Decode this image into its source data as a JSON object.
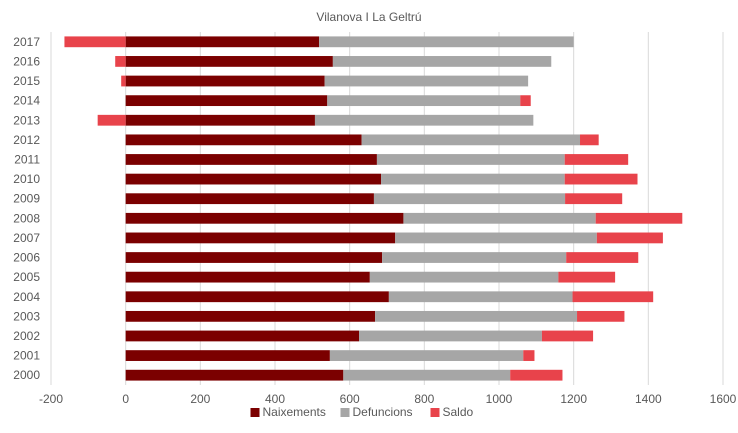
{
  "chart_data": {
    "type": "bar",
    "orientation": "horizontal",
    "stacked": true,
    "title": "Vilanova  I La Geltrú",
    "categories": [
      "2017",
      "2016",
      "2015",
      "2014",
      "2013",
      "2012",
      "2011",
      "2010",
      "2009",
      "2008",
      "2007",
      "2006",
      "2005",
      "2004",
      "2003",
      "2002",
      "2001",
      "2000"
    ],
    "series": [
      {
        "name": "Naixements",
        "color": "#7b0000",
        "values": [
          518,
          555,
          533,
          540,
          507,
          632,
          673,
          684,
          665,
          744,
          722,
          687,
          654,
          705,
          668,
          625,
          547,
          583
        ]
      },
      {
        "name": "Defuncions",
        "color": "#a6a6a6",
        "values": [
          682,
          585,
          545,
          517,
          585,
          585,
          503,
          492,
          512,
          515,
          540,
          493,
          505,
          492,
          541,
          490,
          518,
          447
        ]
      },
      {
        "name": "Saldo",
        "color": "#e8434b",
        "values": [
          -164,
          -28,
          -12,
          28,
          -75,
          50,
          170,
          195,
          153,
          232,
          177,
          193,
          152,
          216,
          127,
          137,
          30,
          140
        ]
      }
    ],
    "xlim": [
      -200,
      1600
    ],
    "xticks": [
      -200,
      0,
      200,
      400,
      600,
      800,
      1000,
      1200,
      1400,
      1600
    ],
    "grid": true,
    "legend_position": "bottom"
  }
}
